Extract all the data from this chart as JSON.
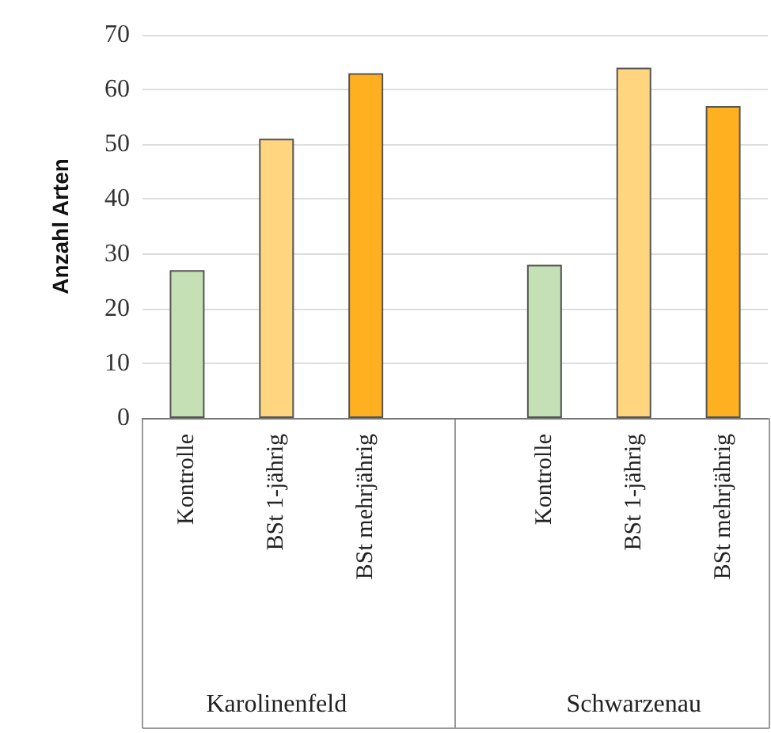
{
  "chart_data": {
    "type": "bar",
    "ylabel": "Anzahl Arten",
    "categories": [
      "Kontrolle",
      "BSt 1-jährig",
      "BSt mehrjährig",
      null,
      "Kontrolle",
      "BSt 1-jährig",
      "BSt mehrjährig"
    ],
    "values": [
      27,
      51,
      63,
      null,
      28,
      64,
      57
    ],
    "colors": [
      "#c5e0b4",
      "#ffd580",
      "#ffb020",
      null,
      "#c5e0b4",
      "#ffd580",
      "#ffb020"
    ],
    "ylim": [
      0,
      70
    ],
    "yticks": [
      0,
      10,
      20,
      30,
      40,
      50,
      60,
      70
    ],
    "grid": "y",
    "annotations": [
      "Karolinenfeld",
      "Schwarzenau"
    ]
  }
}
